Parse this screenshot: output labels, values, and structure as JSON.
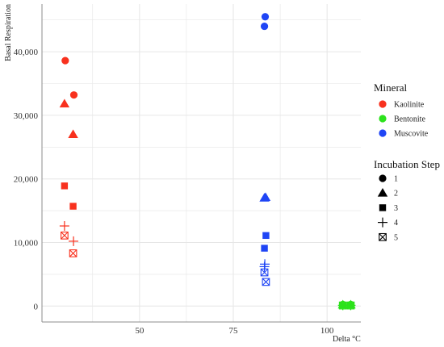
{
  "chart_data": {
    "type": "scatter",
    "title": "",
    "xlabel": "Delta °C",
    "ylabel": "Basal Respiration",
    "xlim": [
      24,
      109
    ],
    "ylim": [
      -2500,
      47500
    ],
    "x_ticks": [
      50,
      75,
      100
    ],
    "x_tick_labels": [
      "50",
      "75",
      "100"
    ],
    "y_ticks": [
      0,
      10000,
      20000,
      30000,
      40000
    ],
    "y_tick_labels": [
      "0",
      "10,000",
      "20,000",
      "30,000",
      "40,000"
    ],
    "grid": true,
    "colors": {
      "Kaolinite": "#f8311e",
      "Bentonite": "#2ce21c",
      "Muscovite": "#1f45f5"
    },
    "legend_mineral": {
      "title": "Mineral",
      "placement": "right",
      "entries": [
        "Kaolinite",
        "Bentonite",
        "Muscovite"
      ]
    },
    "legend_step": {
      "title": "Incubation Step",
      "placement": "right",
      "entries": [
        {
          "label": "1",
          "shape": "circle"
        },
        {
          "label": "2",
          "shape": "triangle"
        },
        {
          "label": "3",
          "shape": "square"
        },
        {
          "label": "4",
          "shape": "plus"
        },
        {
          "label": "5",
          "shape": "boxed-x"
        }
      ]
    },
    "points": [
      {
        "x": 30.2,
        "y": 38600,
        "mineral": "Kaolinite",
        "step": "1"
      },
      {
        "x": 32.5,
        "y": 33200,
        "mineral": "Kaolinite",
        "step": "1"
      },
      {
        "x": 30.0,
        "y": 31800,
        "mineral": "Kaolinite",
        "step": "2"
      },
      {
        "x": 32.3,
        "y": 27000,
        "mineral": "Kaolinite",
        "step": "2"
      },
      {
        "x": 30.0,
        "y": 18900,
        "mineral": "Kaolinite",
        "step": "3"
      },
      {
        "x": 32.3,
        "y": 15700,
        "mineral": "Kaolinite",
        "step": "3"
      },
      {
        "x": 30.0,
        "y": 12600,
        "mineral": "Kaolinite",
        "step": "4"
      },
      {
        "x": 32.4,
        "y": 10200,
        "mineral": "Kaolinite",
        "step": "4"
      },
      {
        "x": 30.0,
        "y": 11100,
        "mineral": "Kaolinite",
        "step": "5"
      },
      {
        "x": 32.3,
        "y": 8300,
        "mineral": "Kaolinite",
        "step": "5"
      },
      {
        "x": 83.5,
        "y": 45500,
        "mineral": "Muscovite",
        "step": "1"
      },
      {
        "x": 83.3,
        "y": 44000,
        "mineral": "Muscovite",
        "step": "1"
      },
      {
        "x": 83.6,
        "y": 17100,
        "mineral": "Muscovite",
        "step": "2"
      },
      {
        "x": 83.3,
        "y": 17000,
        "mineral": "Muscovite",
        "step": "2"
      },
      {
        "x": 83.7,
        "y": 11100,
        "mineral": "Muscovite",
        "step": "3"
      },
      {
        "x": 83.3,
        "y": 9100,
        "mineral": "Muscovite",
        "step": "3"
      },
      {
        "x": 83.4,
        "y": 6600,
        "mineral": "Muscovite",
        "step": "4"
      },
      {
        "x": 83.3,
        "y": 6200,
        "mineral": "Muscovite",
        "step": "4"
      },
      {
        "x": 83.3,
        "y": 5300,
        "mineral": "Muscovite",
        "step": "5"
      },
      {
        "x": 83.7,
        "y": 3800,
        "mineral": "Muscovite",
        "step": "5"
      },
      {
        "x": 104.2,
        "y": 250,
        "mineral": "Bentonite",
        "step": "1"
      },
      {
        "x": 106.3,
        "y": 250,
        "mineral": "Bentonite",
        "step": "1"
      },
      {
        "x": 104.2,
        "y": 200,
        "mineral": "Bentonite",
        "step": "2"
      },
      {
        "x": 106.3,
        "y": 200,
        "mineral": "Bentonite",
        "step": "2"
      },
      {
        "x": 104.2,
        "y": 150,
        "mineral": "Bentonite",
        "step": "3"
      },
      {
        "x": 106.3,
        "y": 150,
        "mineral": "Bentonite",
        "step": "3"
      },
      {
        "x": 104.2,
        "y": 120,
        "mineral": "Bentonite",
        "step": "4"
      },
      {
        "x": 106.3,
        "y": 120,
        "mineral": "Bentonite",
        "step": "4"
      },
      {
        "x": 104.2,
        "y": 90,
        "mineral": "Bentonite",
        "step": "5"
      },
      {
        "x": 106.3,
        "y": 90,
        "mineral": "Bentonite",
        "step": "5"
      }
    ]
  }
}
